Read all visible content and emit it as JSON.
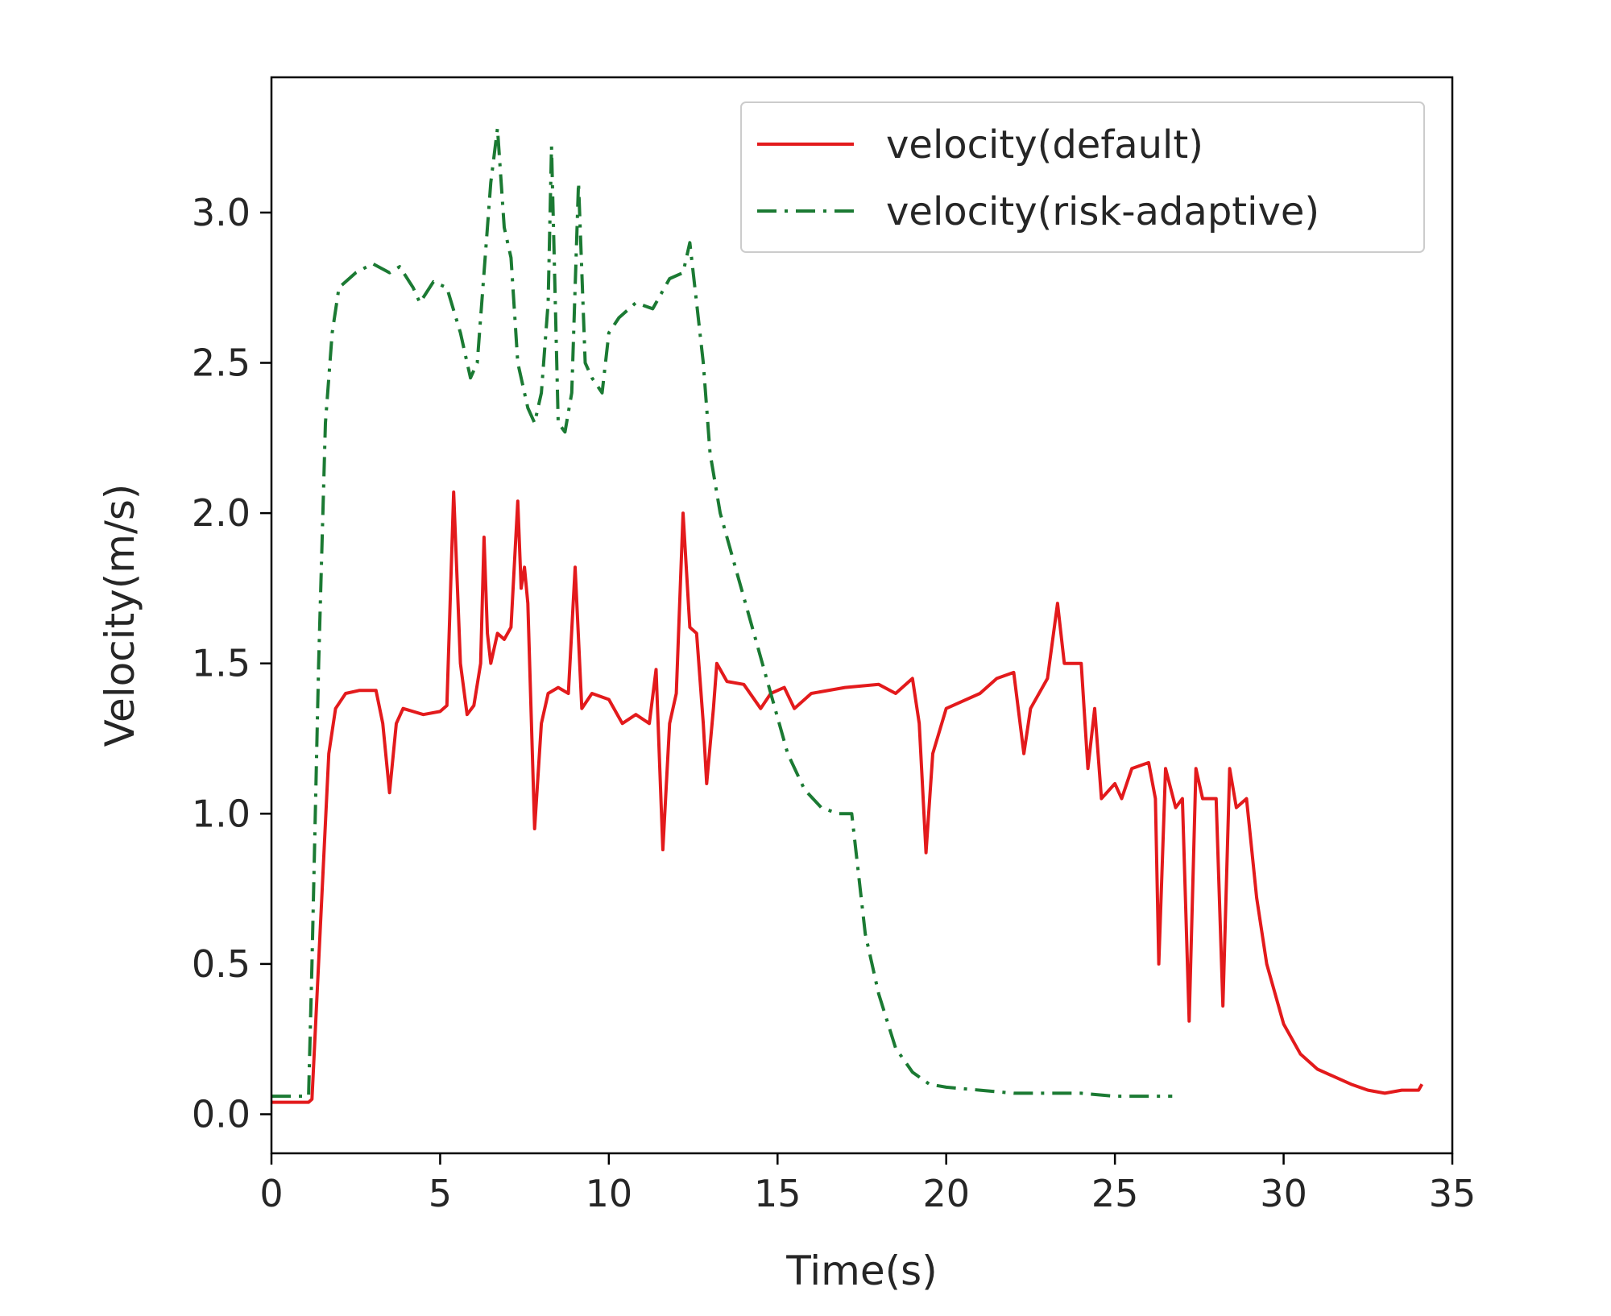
{
  "chart_data": {
    "type": "line",
    "title": "",
    "xlabel": "Time(s)",
    "ylabel": "Velocity(m/s)",
    "xlim": [
      0,
      35
    ],
    "ylim": [
      -0.13,
      3.45
    ],
    "xticks": [
      0,
      5,
      10,
      15,
      20,
      25,
      30,
      35
    ],
    "xtick_labels": [
      "0",
      "5",
      "10",
      "15",
      "20",
      "25",
      "30",
      "35"
    ],
    "yticks": [
      0.0,
      0.5,
      1.0,
      1.5,
      2.0,
      2.5,
      3.0
    ],
    "ytick_labels": [
      "0.0",
      "0.5",
      "1.0",
      "1.5",
      "2.0",
      "2.5",
      "3.0"
    ],
    "grid": false,
    "legend_position": "top-right",
    "series": [
      {
        "name": "velocity(default)",
        "color": "#e31a1c",
        "style": "solid",
        "points": [
          [
            0,
            0.04
          ],
          [
            1.1,
            0.04
          ],
          [
            1.2,
            0.05
          ],
          [
            1.7,
            1.2
          ],
          [
            1.9,
            1.35
          ],
          [
            2.2,
            1.4
          ],
          [
            2.6,
            1.41
          ],
          [
            3.1,
            1.41
          ],
          [
            3.3,
            1.3
          ],
          [
            3.5,
            1.07
          ],
          [
            3.7,
            1.3
          ],
          [
            3.9,
            1.35
          ],
          [
            4.5,
            1.33
          ],
          [
            5.0,
            1.34
          ],
          [
            5.2,
            1.36
          ],
          [
            5.4,
            2.07
          ],
          [
            5.6,
            1.5
          ],
          [
            5.8,
            1.33
          ],
          [
            6.0,
            1.36
          ],
          [
            6.2,
            1.5
          ],
          [
            6.3,
            1.92
          ],
          [
            6.4,
            1.6
          ],
          [
            6.5,
            1.5
          ],
          [
            6.7,
            1.6
          ],
          [
            6.9,
            1.58
          ],
          [
            7.1,
            1.62
          ],
          [
            7.3,
            2.04
          ],
          [
            7.4,
            1.75
          ],
          [
            7.5,
            1.82
          ],
          [
            7.6,
            1.7
          ],
          [
            7.8,
            0.95
          ],
          [
            8.0,
            1.3
          ],
          [
            8.2,
            1.4
          ],
          [
            8.5,
            1.42
          ],
          [
            8.8,
            1.4
          ],
          [
            9.0,
            1.82
          ],
          [
            9.2,
            1.35
          ],
          [
            9.5,
            1.4
          ],
          [
            10.0,
            1.38
          ],
          [
            10.4,
            1.3
          ],
          [
            10.8,
            1.33
          ],
          [
            11.2,
            1.3
          ],
          [
            11.4,
            1.48
          ],
          [
            11.6,
            0.88
          ],
          [
            11.8,
            1.3
          ],
          [
            12.0,
            1.4
          ],
          [
            12.2,
            2.0
          ],
          [
            12.4,
            1.62
          ],
          [
            12.6,
            1.6
          ],
          [
            12.8,
            1.3
          ],
          [
            12.9,
            1.1
          ],
          [
            13.1,
            1.35
          ],
          [
            13.2,
            1.5
          ],
          [
            13.5,
            1.44
          ],
          [
            14.0,
            1.43
          ],
          [
            14.5,
            1.35
          ],
          [
            14.8,
            1.4
          ],
          [
            15.2,
            1.42
          ],
          [
            15.5,
            1.35
          ],
          [
            16.0,
            1.4
          ],
          [
            17.0,
            1.42
          ],
          [
            18.0,
            1.43
          ],
          [
            18.5,
            1.4
          ],
          [
            19.0,
            1.45
          ],
          [
            19.2,
            1.3
          ],
          [
            19.4,
            0.87
          ],
          [
            19.6,
            1.2
          ],
          [
            20.0,
            1.35
          ],
          [
            21.0,
            1.4
          ],
          [
            21.5,
            1.45
          ],
          [
            22.0,
            1.47
          ],
          [
            22.3,
            1.2
          ],
          [
            22.5,
            1.35
          ],
          [
            23.0,
            1.45
          ],
          [
            23.3,
            1.7
          ],
          [
            23.5,
            1.5
          ],
          [
            24.0,
            1.5
          ],
          [
            24.2,
            1.15
          ],
          [
            24.4,
            1.35
          ],
          [
            24.6,
            1.05
          ],
          [
            25.0,
            1.1
          ],
          [
            25.2,
            1.05
          ],
          [
            25.5,
            1.15
          ],
          [
            26.0,
            1.17
          ],
          [
            26.2,
            1.05
          ],
          [
            26.3,
            0.5
          ],
          [
            26.5,
            1.15
          ],
          [
            26.8,
            1.02
          ],
          [
            27.0,
            1.05
          ],
          [
            27.2,
            0.31
          ],
          [
            27.4,
            1.15
          ],
          [
            27.6,
            1.05
          ],
          [
            28.0,
            1.05
          ],
          [
            28.2,
            0.36
          ],
          [
            28.4,
            1.15
          ],
          [
            28.6,
            1.02
          ],
          [
            28.9,
            1.05
          ],
          [
            29.2,
            0.72
          ],
          [
            29.5,
            0.5
          ],
          [
            30.0,
            0.3
          ],
          [
            30.5,
            0.2
          ],
          [
            31.0,
            0.15
          ],
          [
            32.0,
            0.1
          ],
          [
            32.5,
            0.08
          ],
          [
            33.0,
            0.07
          ],
          [
            33.5,
            0.08
          ],
          [
            34.0,
            0.08
          ],
          [
            34.1,
            0.1
          ]
        ]
      },
      {
        "name": "velocity(risk-adaptive)",
        "color": "#1b7a33",
        "style": "dashdot",
        "points": [
          [
            0,
            0.06
          ],
          [
            1.1,
            0.06
          ],
          [
            1.2,
            0.5
          ],
          [
            1.4,
            1.5
          ],
          [
            1.6,
            2.3
          ],
          [
            1.8,
            2.6
          ],
          [
            2.0,
            2.75
          ],
          [
            2.5,
            2.8
          ],
          [
            3.0,
            2.83
          ],
          [
            3.5,
            2.8
          ],
          [
            3.8,
            2.82
          ],
          [
            4.2,
            2.75
          ],
          [
            4.4,
            2.7
          ],
          [
            4.8,
            2.77
          ],
          [
            5.2,
            2.75
          ],
          [
            5.6,
            2.6
          ],
          [
            5.9,
            2.45
          ],
          [
            6.1,
            2.5
          ],
          [
            6.3,
            2.8
          ],
          [
            6.5,
            3.1
          ],
          [
            6.7,
            3.28
          ],
          [
            6.9,
            2.95
          ],
          [
            7.1,
            2.85
          ],
          [
            7.3,
            2.5
          ],
          [
            7.6,
            2.35
          ],
          [
            7.8,
            2.3
          ],
          [
            8.0,
            2.4
          ],
          [
            8.2,
            2.7
          ],
          [
            8.3,
            3.22
          ],
          [
            8.5,
            2.3
          ],
          [
            8.7,
            2.27
          ],
          [
            8.9,
            2.4
          ],
          [
            9.1,
            3.1
          ],
          [
            9.3,
            2.5
          ],
          [
            9.5,
            2.45
          ],
          [
            9.8,
            2.4
          ],
          [
            10.0,
            2.6
          ],
          [
            10.3,
            2.65
          ],
          [
            10.8,
            2.7
          ],
          [
            11.3,
            2.68
          ],
          [
            11.8,
            2.78
          ],
          [
            12.2,
            2.8
          ],
          [
            12.4,
            2.9
          ],
          [
            12.6,
            2.7
          ],
          [
            12.8,
            2.5
          ],
          [
            13.0,
            2.2
          ],
          [
            13.3,
            2.0
          ],
          [
            13.8,
            1.8
          ],
          [
            14.3,
            1.6
          ],
          [
            14.8,
            1.4
          ],
          [
            15.3,
            1.2
          ],
          [
            15.8,
            1.08
          ],
          [
            16.3,
            1.02
          ],
          [
            16.8,
            1.0
          ],
          [
            17.2,
            1.0
          ],
          [
            17.4,
            0.8
          ],
          [
            17.6,
            0.6
          ],
          [
            18.0,
            0.4
          ],
          [
            18.5,
            0.22
          ],
          [
            19.0,
            0.14
          ],
          [
            19.5,
            0.1
          ],
          [
            20.0,
            0.09
          ],
          [
            21.0,
            0.08
          ],
          [
            22.0,
            0.07
          ],
          [
            24.0,
            0.07
          ],
          [
            25.0,
            0.06
          ],
          [
            26.7,
            0.06
          ]
        ]
      }
    ]
  }
}
